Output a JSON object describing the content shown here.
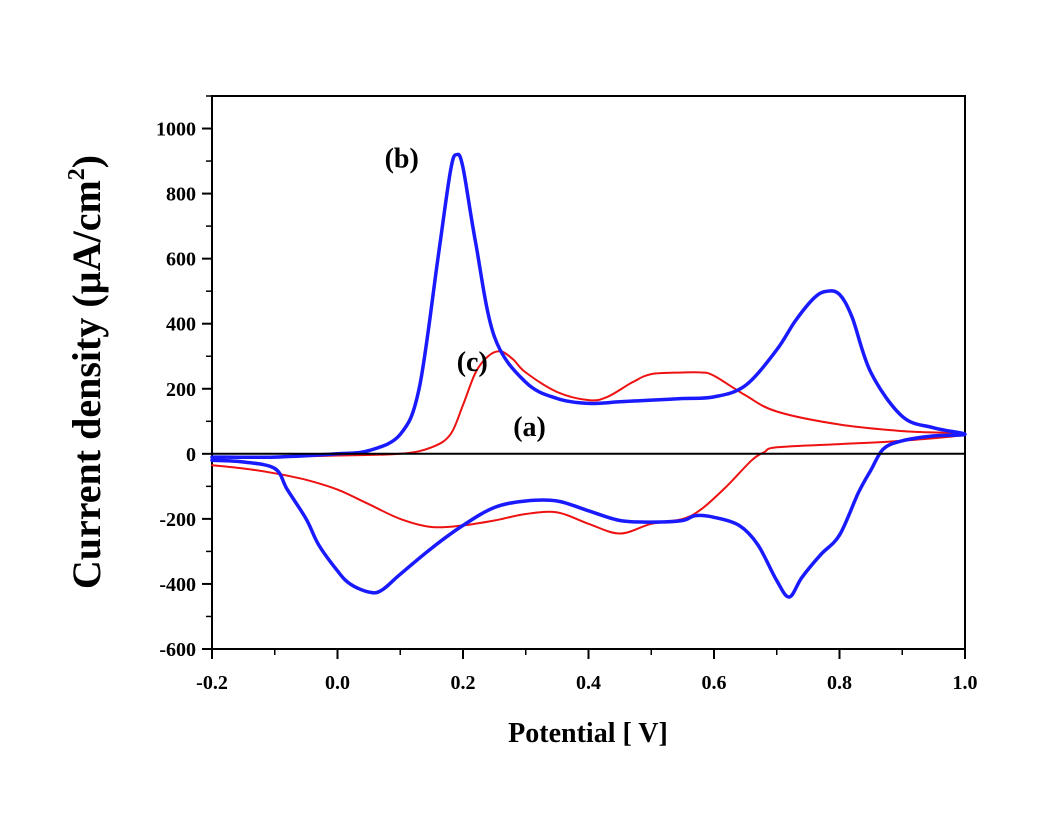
{
  "chart_data": {
    "type": "line",
    "title": "",
    "xlabel": "Potential [ V]",
    "ylabel": "Current density (µA/cm2)",
    "ylabel_main": "Current density (µA/cm",
    "ylabel_sup": "2",
    "ylabel_close": ")",
    "xlim": [
      -0.2,
      1.0
    ],
    "ylim": [
      -600,
      1100
    ],
    "xticks": [
      -0.2,
      0.0,
      0.2,
      0.4,
      0.6,
      0.8,
      1.0
    ],
    "xtick_labels": [
      "-0.2",
      "0.0",
      "0.2",
      "0.4",
      "0.6",
      "0.8",
      "1.0"
    ],
    "yticks": [
      -600,
      -400,
      -200,
      0,
      200,
      400,
      600,
      800,
      1000
    ],
    "ytick_labels": [
      "-600",
      "-400",
      "-200",
      "0",
      "200",
      "400",
      "600",
      "800",
      "1000"
    ],
    "grid": false,
    "series": [
      {
        "label": "(a)",
        "color": "#000000",
        "x": [
          -0.2,
          1.0
        ],
        "y": [
          0,
          0
        ]
      },
      {
        "label": "(b)",
        "color": "#1a1aff",
        "x": [
          -0.2,
          -0.1,
          0.0,
          0.05,
          0.1,
          0.13,
          0.16,
          0.18,
          0.19,
          0.2,
          0.22,
          0.25,
          0.3,
          0.35,
          0.4,
          0.45,
          0.5,
          0.55,
          0.6,
          0.65,
          0.7,
          0.73,
          0.76,
          0.78,
          0.8,
          0.82,
          0.85,
          0.9,
          0.95,
          1.0,
          0.95,
          0.9,
          0.87,
          0.85,
          0.83,
          0.8,
          0.77,
          0.74,
          0.72,
          0.7,
          0.67,
          0.64,
          0.6,
          0.57,
          0.55,
          0.5,
          0.45,
          0.4,
          0.35,
          0.3,
          0.25,
          0.2,
          0.15,
          0.1,
          0.07,
          0.05,
          0.02,
          0.0,
          -0.03,
          -0.05,
          -0.08,
          -0.1,
          -0.15,
          -0.2
        ],
        "y": [
          -10,
          -10,
          0,
          10,
          60,
          200,
          600,
          870,
          920,
          880,
          650,
          360,
          220,
          170,
          155,
          160,
          165,
          170,
          175,
          210,
          320,
          410,
          480,
          500,
          490,
          420,
          250,
          115,
          80,
          60,
          55,
          40,
          15,
          -50,
          -120,
          -250,
          -310,
          -380,
          -440,
          -390,
          -280,
          -220,
          -195,
          -190,
          -205,
          -210,
          -205,
          -175,
          -145,
          -145,
          -165,
          -220,
          -290,
          -370,
          -420,
          -425,
          -400,
          -360,
          -280,
          -200,
          -110,
          -45,
          -25,
          -20
        ]
      },
      {
        "label": "(c)",
        "color": "#ee1111",
        "x": [
          -0.2,
          -0.1,
          0.0,
          0.1,
          0.15,
          0.18,
          0.2,
          0.22,
          0.24,
          0.26,
          0.28,
          0.3,
          0.35,
          0.4,
          0.43,
          0.47,
          0.5,
          0.55,
          0.58,
          0.6,
          0.65,
          0.7,
          0.8,
          0.9,
          1.0,
          0.9,
          0.8,
          0.7,
          0.68,
          0.66,
          0.62,
          0.58,
          0.55,
          0.5,
          0.45,
          0.4,
          0.35,
          0.3,
          0.25,
          0.2,
          0.15,
          0.1,
          0.05,
          0.0,
          -0.05,
          -0.1,
          -0.15,
          -0.2
        ],
        "y": [
          -10,
          -10,
          -5,
          0,
          20,
          60,
          150,
          250,
          300,
          315,
          290,
          250,
          190,
          165,
          175,
          220,
          245,
          250,
          250,
          240,
          180,
          130,
          90,
          70,
          60,
          40,
          30,
          20,
          5,
          -20,
          -100,
          -170,
          -200,
          -215,
          -245,
          -215,
          -180,
          -185,
          -205,
          -220,
          -225,
          -200,
          -155,
          -110,
          -80,
          -60,
          -45,
          -35
        ]
      }
    ],
    "annotations": [
      {
        "text": "(b)",
        "x": 0.075,
        "y": 880
      },
      {
        "text": "(c)",
        "x": 0.19,
        "y": 255
      },
      {
        "text": "(a)",
        "x": 0.28,
        "y": 55
      }
    ]
  }
}
